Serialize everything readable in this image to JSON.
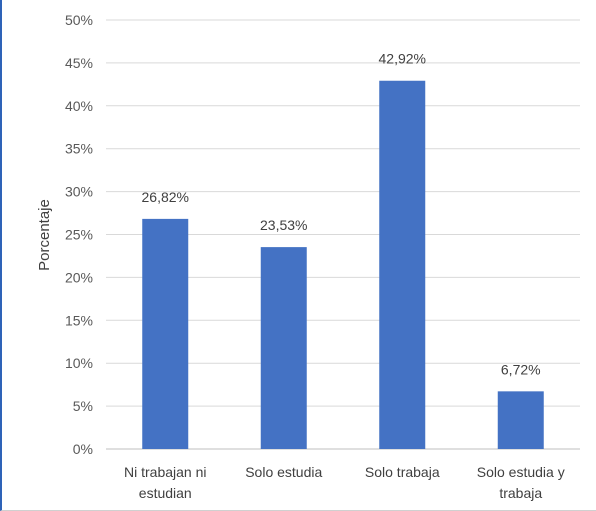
{
  "chart_data": {
    "type": "bar",
    "title": "",
    "xlabel": "",
    "ylabel": "Porcentaje",
    "ylim": [
      0,
      50
    ],
    "ytick_step": 5,
    "ytick_suffix": "%",
    "grid": true,
    "legend": "none",
    "bar_color": "#4472c4",
    "categories": [
      [
        "Ni trabajan ni",
        "estudian"
      ],
      [
        "Solo estudia"
      ],
      [
        "Solo trabaja"
      ],
      [
        "Solo estudia y",
        "trabaja"
      ]
    ],
    "values": [
      26.82,
      23.53,
      42.92,
      6.72
    ],
    "data_labels": [
      "26,82%",
      "23,53%",
      "42,92%",
      "6,72%"
    ]
  }
}
